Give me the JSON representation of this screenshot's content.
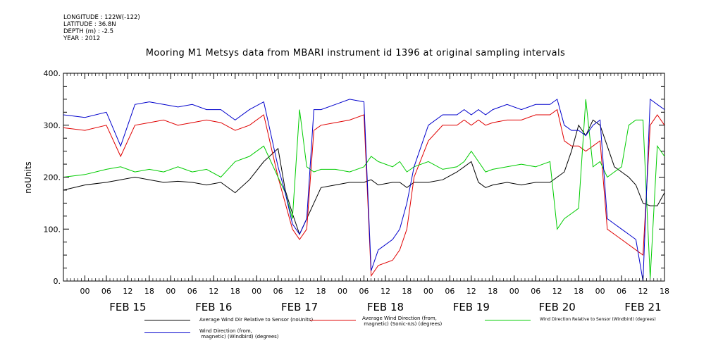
{
  "meta": {
    "longitude": "LONGITUDE : 122W(-122)",
    "latitude": "LATITUDE : 36.8N",
    "depth": "DEPTH (m) : -2.5",
    "year": "YEAR : 2012"
  },
  "colors": {
    "black": "#000000",
    "red": "#e00000",
    "green": "#00cc00",
    "blue": "#0000cc"
  },
  "chart_data": {
    "type": "line",
    "title": "Mooring M1 Metsys data from MBARI instrument id 1396 at original sampling intervals",
    "ylabel": "noUnits",
    "ylim": [
      0,
      400
    ],
    "yticks": [
      "0.",
      "100.",
      "200.",
      "300.",
      "400."
    ],
    "yticks_values": [
      0,
      100,
      200,
      300,
      400
    ],
    "xlim_hours": [
      -6,
      162
    ],
    "xtick_labels": [
      "00",
      "06",
      "12",
      "18",
      "00",
      "06",
      "12",
      "18",
      "00",
      "06",
      "12",
      "18",
      "00",
      "06",
      "12",
      "18",
      "00",
      "06",
      "12",
      "18",
      "00",
      "06",
      "12",
      "18",
      "00",
      "06",
      "12",
      "18"
    ],
    "day_labels": [
      "FEB 15",
      "FEB 16",
      "FEB 17",
      "FEB 18",
      "FEB 19",
      "FEB 20",
      "FEB 21"
    ],
    "series": [
      {
        "name": "Average Wind Dir Relative to Sensor (noUnits)",
        "color": "#000000",
        "points": [
          [
            -6,
            175
          ],
          [
            0,
            185
          ],
          [
            6,
            190
          ],
          [
            10,
            195
          ],
          [
            14,
            200
          ],
          [
            18,
            195
          ],
          [
            22,
            190
          ],
          [
            26,
            192
          ],
          [
            30,
            190
          ],
          [
            34,
            185
          ],
          [
            38,
            190
          ],
          [
            42,
            170
          ],
          [
            46,
            195
          ],
          [
            50,
            230
          ],
          [
            54,
            255
          ],
          [
            56,
            175
          ],
          [
            58,
            130
          ],
          [
            60,
            90
          ],
          [
            62,
            120
          ],
          [
            64,
            150
          ],
          [
            66,
            180
          ],
          [
            70,
            185
          ],
          [
            74,
            190
          ],
          [
            78,
            190
          ],
          [
            80,
            195
          ],
          [
            82,
            185
          ],
          [
            86,
            190
          ],
          [
            88,
            190
          ],
          [
            90,
            180
          ],
          [
            92,
            190
          ],
          [
            96,
            190
          ],
          [
            100,
            195
          ],
          [
            104,
            210
          ],
          [
            106,
            220
          ],
          [
            108,
            230
          ],
          [
            110,
            190
          ],
          [
            112,
            180
          ],
          [
            114,
            185
          ],
          [
            118,
            190
          ],
          [
            122,
            185
          ],
          [
            126,
            190
          ],
          [
            130,
            190
          ],
          [
            132,
            200
          ],
          [
            134,
            210
          ],
          [
            136,
            250
          ],
          [
            138,
            300
          ],
          [
            140,
            280
          ],
          [
            142,
            310
          ],
          [
            144,
            300
          ],
          [
            146,
            260
          ],
          [
            148,
            220
          ],
          [
            150,
            210
          ],
          [
            152,
            200
          ],
          [
            154,
            185
          ],
          [
            156,
            150
          ],
          [
            158,
            145
          ],
          [
            160,
            145
          ],
          [
            162,
            170
          ]
        ]
      },
      {
        "name": "Average Wind Direction (from, magnetic) (Sonic-n/s) (degrees)",
        "color": "#e00000",
        "points": [
          [
            -6,
            295
          ],
          [
            0,
            290
          ],
          [
            6,
            300
          ],
          [
            10,
            240
          ],
          [
            14,
            300
          ],
          [
            18,
            305
          ],
          [
            22,
            310
          ],
          [
            26,
            300
          ],
          [
            30,
            305
          ],
          [
            34,
            310
          ],
          [
            38,
            305
          ],
          [
            42,
            290
          ],
          [
            46,
            300
          ],
          [
            50,
            320
          ],
          [
            54,
            200
          ],
          [
            56,
            150
          ],
          [
            58,
            100
          ],
          [
            60,
            80
          ],
          [
            62,
            100
          ],
          [
            64,
            290
          ],
          [
            66,
            300
          ],
          [
            70,
            305
          ],
          [
            74,
            310
          ],
          [
            78,
            320
          ],
          [
            80,
            10
          ],
          [
            82,
            30
          ],
          [
            86,
            40
          ],
          [
            88,
            60
          ],
          [
            90,
            100
          ],
          [
            92,
            200
          ],
          [
            96,
            270
          ],
          [
            100,
            300
          ],
          [
            104,
            300
          ],
          [
            106,
            310
          ],
          [
            108,
            300
          ],
          [
            110,
            310
          ],
          [
            112,
            300
          ],
          [
            114,
            305
          ],
          [
            118,
            310
          ],
          [
            122,
            310
          ],
          [
            126,
            320
          ],
          [
            130,
            320
          ],
          [
            132,
            330
          ],
          [
            134,
            270
          ],
          [
            136,
            260
          ],
          [
            138,
            260
          ],
          [
            140,
            250
          ],
          [
            142,
            260
          ],
          [
            144,
            270
          ],
          [
            146,
            100
          ],
          [
            148,
            90
          ],
          [
            150,
            80
          ],
          [
            152,
            70
          ],
          [
            154,
            60
          ],
          [
            156,
            50
          ],
          [
            158,
            300
          ],
          [
            160,
            320
          ],
          [
            162,
            300
          ]
        ]
      },
      {
        "name": "Wind Direction Relative to Sensor (Windbird) (degrees)",
        "color": "#00cc00",
        "points": [
          [
            -6,
            200
          ],
          [
            0,
            205
          ],
          [
            6,
            215
          ],
          [
            10,
            220
          ],
          [
            14,
            210
          ],
          [
            18,
            215
          ],
          [
            22,
            210
          ],
          [
            26,
            220
          ],
          [
            30,
            210
          ],
          [
            34,
            215
          ],
          [
            38,
            200
          ],
          [
            42,
            230
          ],
          [
            46,
            240
          ],
          [
            50,
            260
          ],
          [
            54,
            200
          ],
          [
            56,
            170
          ],
          [
            58,
            120
          ],
          [
            60,
            330
          ],
          [
            62,
            220
          ],
          [
            64,
            210
          ],
          [
            66,
            215
          ],
          [
            70,
            215
          ],
          [
            74,
            210
          ],
          [
            78,
            220
          ],
          [
            80,
            240
          ],
          [
            82,
            230
          ],
          [
            86,
            220
          ],
          [
            88,
            230
          ],
          [
            90,
            210
          ],
          [
            92,
            220
          ],
          [
            96,
            230
          ],
          [
            100,
            215
          ],
          [
            104,
            220
          ],
          [
            106,
            230
          ],
          [
            108,
            250
          ],
          [
            110,
            230
          ],
          [
            112,
            210
          ],
          [
            114,
            215
          ],
          [
            118,
            220
          ],
          [
            122,
            225
          ],
          [
            126,
            220
          ],
          [
            130,
            230
          ],
          [
            132,
            100
          ],
          [
            134,
            120
          ],
          [
            136,
            130
          ],
          [
            138,
            140
          ],
          [
            140,
            350
          ],
          [
            142,
            220
          ],
          [
            144,
            230
          ],
          [
            146,
            200
          ],
          [
            148,
            210
          ],
          [
            150,
            220
          ],
          [
            152,
            300
          ],
          [
            154,
            310
          ],
          [
            156,
            310
          ],
          [
            158,
            5
          ],
          [
            160,
            260
          ],
          [
            162,
            240
          ]
        ]
      },
      {
        "name": "Wind Direction (from, magnetic) (Windbird) (degrees)",
        "color": "#0000cc",
        "points": [
          [
            -6,
            320
          ],
          [
            0,
            315
          ],
          [
            6,
            325
          ],
          [
            10,
            260
          ],
          [
            14,
            340
          ],
          [
            18,
            345
          ],
          [
            22,
            340
          ],
          [
            26,
            335
          ],
          [
            30,
            340
          ],
          [
            34,
            330
          ],
          [
            38,
            330
          ],
          [
            42,
            310
          ],
          [
            46,
            330
          ],
          [
            50,
            345
          ],
          [
            54,
            220
          ],
          [
            56,
            170
          ],
          [
            58,
            110
          ],
          [
            60,
            90
          ],
          [
            62,
            120
          ],
          [
            64,
            330
          ],
          [
            66,
            330
          ],
          [
            70,
            340
          ],
          [
            74,
            350
          ],
          [
            78,
            345
          ],
          [
            80,
            20
          ],
          [
            82,
            60
          ],
          [
            86,
            80
          ],
          [
            88,
            100
          ],
          [
            90,
            150
          ],
          [
            92,
            220
          ],
          [
            96,
            300
          ],
          [
            100,
            320
          ],
          [
            104,
            320
          ],
          [
            106,
            330
          ],
          [
            108,
            320
          ],
          [
            110,
            330
          ],
          [
            112,
            320
          ],
          [
            114,
            330
          ],
          [
            118,
            340
          ],
          [
            122,
            330
          ],
          [
            126,
            340
          ],
          [
            130,
            340
          ],
          [
            132,
            350
          ],
          [
            134,
            300
          ],
          [
            136,
            290
          ],
          [
            138,
            290
          ],
          [
            140,
            280
          ],
          [
            142,
            300
          ],
          [
            144,
            310
          ],
          [
            146,
            120
          ],
          [
            148,
            110
          ],
          [
            150,
            100
          ],
          [
            152,
            90
          ],
          [
            154,
            80
          ],
          [
            156,
            0
          ],
          [
            158,
            350
          ],
          [
            160,
            340
          ],
          [
            162,
            330
          ]
        ]
      }
    ],
    "legend": [
      {
        "text": "Average Wind Dir Relative to Sensor (noUnits)"
      },
      {
        "text": "Average Wind Direction (from,\n magnetic) (Sonic-n/s) (degrees)"
      },
      {
        "text": "Wind Direction Relative to Sensor (Windbird) (degrees)"
      },
      {
        "text": "Wind Direction (from,\n magnetic) (Windbird) (degrees)"
      }
    ]
  }
}
